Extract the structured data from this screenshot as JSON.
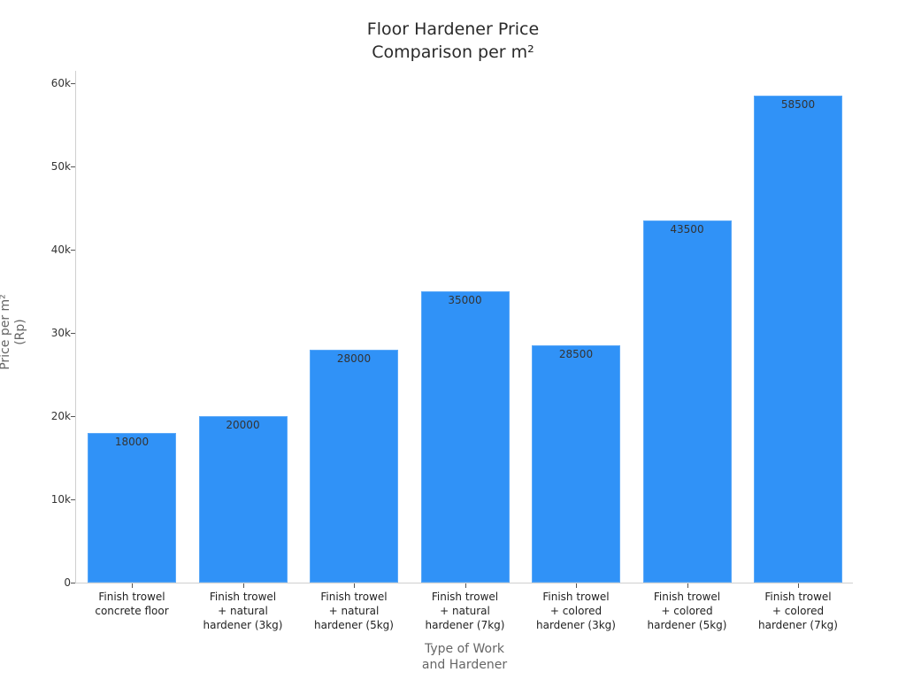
{
  "chart_data": {
    "type": "bar",
    "title": "Floor Hardener Price Comparison per m²",
    "title_lines": [
      "Floor Hardener Price",
      "Comparison per m²"
    ],
    "xlabel": "Type of Work and Hardener",
    "xlabel_lines": [
      "Type of Work",
      "and Hardener"
    ],
    "ylabel": "Price per m² (Rp)",
    "ylabel_lines": [
      "Price per m²",
      "(Rp)"
    ],
    "ylim": [
      0,
      61500
    ],
    "yticks": [
      0,
      10000,
      20000,
      30000,
      40000,
      50000,
      60000
    ],
    "ytick_labels": [
      "0",
      "10k",
      "20k",
      "30k",
      "40k",
      "50k",
      "60k"
    ],
    "grid": false,
    "legend": null,
    "bar_color": "#3092f7",
    "categories": [
      "Finish trowel concrete floor",
      "Finish trowel + natural hardener (3kg)",
      "Finish trowel + natural hardener (5kg)",
      "Finish trowel + natural hardener (7kg)",
      "Finish trowel + colored hardener (3kg)",
      "Finish trowel + colored hardener (5kg)",
      "Finish trowel + colored hardener (7kg)"
    ],
    "category_lines": [
      [
        "Finish trowel",
        "concrete floor"
      ],
      [
        "Finish trowel",
        "+ natural",
        "hardener (3kg)"
      ],
      [
        "Finish trowel",
        "+ natural",
        "hardener (5kg)"
      ],
      [
        "Finish trowel",
        "+ natural",
        "hardener (7kg)"
      ],
      [
        "Finish trowel",
        "+ colored",
        "hardener (3kg)"
      ],
      [
        "Finish trowel",
        "+ colored",
        "hardener (5kg)"
      ],
      [
        "Finish trowel",
        "+ colored",
        "hardener (7kg)"
      ]
    ],
    "values": [
      18000,
      20000,
      28000,
      35000,
      28500,
      43500,
      58500
    ],
    "data_labels": [
      "18000",
      "20000",
      "28000",
      "35000",
      "28500",
      "43500",
      "58500"
    ]
  }
}
